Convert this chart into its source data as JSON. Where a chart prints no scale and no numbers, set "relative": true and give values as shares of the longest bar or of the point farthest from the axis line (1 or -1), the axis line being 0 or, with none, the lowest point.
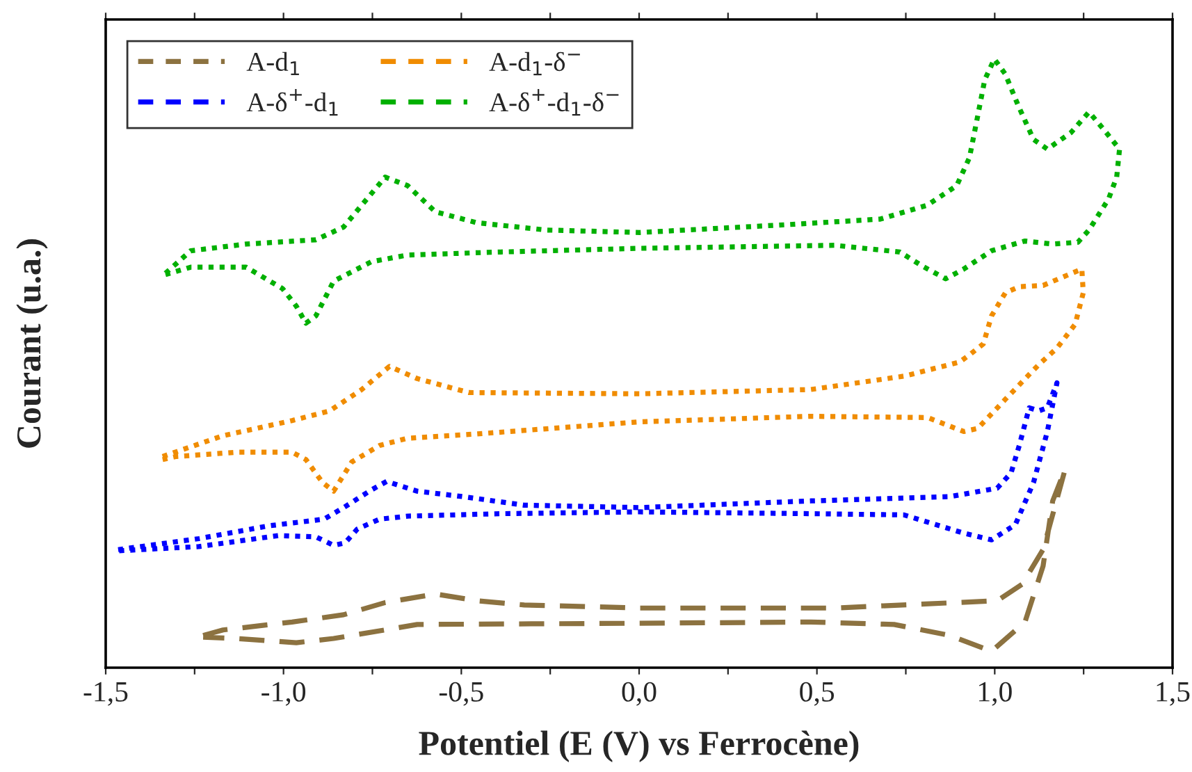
{
  "chart_data": {
    "type": "line",
    "relative": true,
    "xlabel": "Potentiel (E (V) vs Ferrocène)",
    "ylabel": "Courant (u.a.)",
    "xlim": [
      -1.5,
      1.5
    ],
    "xticks": [
      {
        "value": -1.5,
        "label": "-1,5"
      },
      {
        "value": -1.25,
        "label": null
      },
      {
        "value": -1.0,
        "label": "-1,0"
      },
      {
        "value": -0.75,
        "label": null
      },
      {
        "value": -0.5,
        "label": "-0,5"
      },
      {
        "value": -0.25,
        "label": null
      },
      {
        "value": 0.0,
        "label": "0,0"
      },
      {
        "value": 0.25,
        "label": null
      },
      {
        "value": 0.5,
        "label": "0,5"
      },
      {
        "value": 0.75,
        "label": null
      },
      {
        "value": 1.0,
        "label": "1,0"
      },
      {
        "value": 1.25,
        "label": null
      },
      {
        "value": 1.5,
        "label": "1,5"
      }
    ],
    "legend": "top left",
    "grid": false,
    "tick_labels": "x",
    "series": [
      {
        "name": "A-d$_{1}$",
        "color": "#8c7240",
        "line_style": "dashed",
        "x": [
          -1.226,
          -1.17,
          -0.976,
          -0.831,
          -0.714,
          -0.573,
          -0.456,
          -0.323,
          0.002,
          0.549,
          1.007,
          1.077,
          1.136,
          1.198,
          1.163,
          1.136,
          1.085,
          0.991,
          0.874,
          0.717,
          0.483,
          0.002,
          -0.624,
          -0.714,
          -0.859,
          -0.964,
          -1.132,
          -1.226
        ],
        "values": [
          0.053,
          0.062,
          0.075,
          0.087,
          0.107,
          0.121,
          0.11,
          0.103,
          0.098,
          0.098,
          0.11,
          0.137,
          0.194,
          0.326,
          0.274,
          0.167,
          0.075,
          0.027,
          0.053,
          0.071,
          0.075,
          0.073,
          0.071,
          0.062,
          0.048,
          0.041,
          0.048,
          0.05
        ]
      },
      {
        "name": "A-d$_{1}$-δ$^{−}$",
        "color": "#f08c00",
        "line_style": "dotted",
        "x": [
          -1.34,
          -1.171,
          -0.976,
          -0.87,
          -0.78,
          -0.702,
          -0.624,
          -0.479,
          0.002,
          0.483,
          0.745,
          0.901,
          0.929,
          0.968,
          0.991,
          1.03,
          1.069,
          1.136,
          1.245,
          1.249,
          1.226,
          1.175,
          1.124,
          1.03,
          0.952,
          0.913,
          0.811,
          0.483,
          0.002,
          -0.456,
          -0.651,
          -0.73,
          -0.808,
          -0.859,
          -0.89,
          -0.937,
          -0.976,
          -1.132,
          -1.301,
          -1.34
        ],
        "values": [
          0.347,
          0.381,
          0.406,
          0.422,
          0.457,
          0.495,
          0.475,
          0.452,
          0.45,
          0.457,
          0.479,
          0.502,
          0.514,
          0.532,
          0.578,
          0.616,
          0.626,
          0.628,
          0.655,
          0.616,
          0.564,
          0.525,
          0.498,
          0.441,
          0.393,
          0.388,
          0.411,
          0.413,
          0.404,
          0.384,
          0.377,
          0.365,
          0.338,
          0.29,
          0.304,
          0.342,
          0.354,
          0.354,
          0.347,
          0.342
        ]
      },
      {
        "name": "A-δ$^{+}$-d$_{1}$",
        "color": "#0000ff",
        "line_style": "dotted",
        "x": [
          -1.465,
          -1.238,
          -1.042,
          -0.886,
          -0.831,
          -0.753,
          -0.71,
          -0.624,
          -0.495,
          -0.323,
          0.002,
          0.483,
          0.874,
          1.007,
          1.046,
          1.069,
          1.097,
          1.124,
          1.148,
          1.175,
          1.148,
          1.109,
          1.058,
          0.991,
          0.913,
          0.745,
          0.483,
          0.002,
          -0.389,
          -0.651,
          -0.73,
          -0.792,
          -0.827,
          -0.859,
          -0.909,
          -1.015,
          -1.238,
          -1.465
        ],
        "values": [
          0.194,
          0.212,
          0.233,
          0.244,
          0.263,
          0.292,
          0.306,
          0.29,
          0.281,
          0.267,
          0.263,
          0.274,
          0.281,
          0.295,
          0.32,
          0.365,
          0.427,
          0.422,
          0.427,
          0.468,
          0.388,
          0.304,
          0.235,
          0.21,
          0.221,
          0.251,
          0.253,
          0.256,
          0.253,
          0.249,
          0.244,
          0.228,
          0.205,
          0.201,
          0.215,
          0.217,
          0.199,
          0.192
        ]
      },
      {
        "name": "A-δ$^{+}$-d$_{1}$-δ$^{−}$",
        "color": "#00b000",
        "line_style": "dotted",
        "x": [
          -1.332,
          -1.261,
          -1.105,
          -0.909,
          -0.831,
          -0.78,
          -0.714,
          -0.651,
          -0.573,
          -0.456,
          -0.26,
          0.002,
          0.42,
          0.678,
          0.811,
          0.893,
          0.929,
          0.952,
          0.972,
          0.999,
          1.03,
          1.065,
          1.109,
          1.148,
          1.214,
          1.265,
          1.304,
          1.351,
          1.343,
          1.32,
          1.265,
          1.234,
          1.163,
          1.085,
          0.991,
          0.913,
          0.862,
          0.796,
          0.733,
          0.549,
          0.002,
          -0.389,
          -0.651,
          -0.753,
          -0.859,
          -0.909,
          -0.937,
          -0.964,
          -1.003,
          -1.105,
          -1.261,
          -1.332
        ],
        "values": [
          0.648,
          0.685,
          0.696,
          0.703,
          0.724,
          0.76,
          0.806,
          0.792,
          0.749,
          0.731,
          0.719,
          0.715,
          0.728,
          0.737,
          0.76,
          0.792,
          0.838,
          0.906,
          0.966,
          1.0,
          0.975,
          0.925,
          0.868,
          0.852,
          0.879,
          0.913,
          0.886,
          0.852,
          0.806,
          0.77,
          0.719,
          0.699,
          0.696,
          0.701,
          0.685,
          0.655,
          0.639,
          0.66,
          0.683,
          0.694,
          0.689,
          0.683,
          0.678,
          0.667,
          0.635,
          0.578,
          0.566,
          0.594,
          0.623,
          0.658,
          0.658,
          0.646
        ]
      }
    ]
  }
}
